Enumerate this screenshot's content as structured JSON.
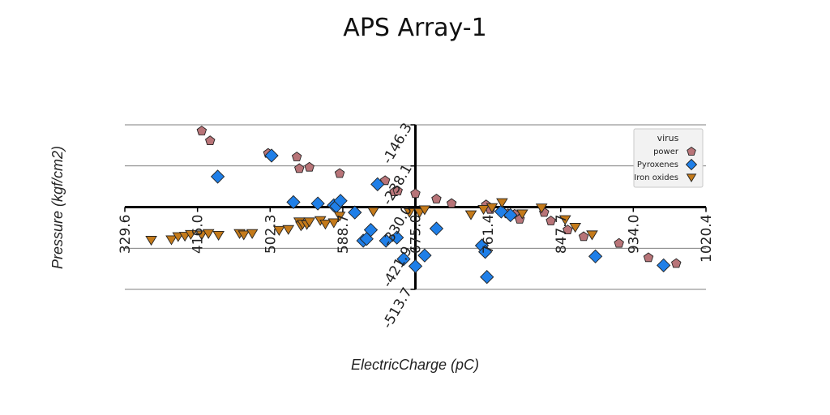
{
  "chart_data": {
    "type": "scatter",
    "title": "APS Array-1",
    "xlabel": "ElectricCharge (pC)",
    "ylabel": "Pressure (kgf/cm2)",
    "xlim": [
      329.6,
      1020.4
    ],
    "ylim": [
      -513.7,
      -146.3
    ],
    "x_ticks": [
      "329.6",
      "416.0",
      "502.3",
      "588.7",
      "675.0",
      "761.4",
      "847.7",
      "934.0",
      "1020.4"
    ],
    "y_ticks": [
      "-146.3",
      "-238.1",
      "-330.0",
      "-421.9",
      "-513.7"
    ],
    "y_tick_values": [
      -146.3,
      -238.1,
      -330.0,
      -421.9,
      -513.7
    ],
    "x_tick_values": [
      329.6,
      416.0,
      502.3,
      588.7,
      675.0,
      761.4,
      847.7,
      934.0,
      1020.4
    ],
    "axes_cross_x": 675.0,
    "axes_cross_y": -330.0,
    "grid": "horizontal",
    "legend": {
      "title": "virus",
      "placement": "right"
    },
    "series": [
      {
        "name": "power",
        "marker": "pentagon",
        "color": "#b87478",
        "points": [
          [
            421,
            -160
          ],
          [
            431,
            -182
          ],
          [
            500,
            -210
          ],
          [
            534,
            -218
          ],
          [
            537,
            -244
          ],
          [
            549,
            -241
          ],
          [
            585,
            -255
          ],
          [
            639,
            -271
          ],
          [
            650,
            -296
          ],
          [
            654,
            -294
          ],
          [
            675,
            -300
          ],
          [
            700,
            -312
          ],
          [
            718,
            -322
          ],
          [
            759,
            -325
          ],
          [
            764,
            -335
          ],
          [
            785,
            -345
          ],
          [
            793,
            -346
          ],
          [
            799,
            -357
          ],
          [
            828,
            -342
          ],
          [
            836,
            -361
          ],
          [
            856,
            -381
          ],
          [
            875,
            -396
          ],
          [
            917,
            -411
          ],
          [
            952,
            -443
          ],
          [
            985,
            -456
          ]
        ]
      },
      {
        "name": "Pyroxenes",
        "marker": "diamond",
        "color": "#1f7fe8",
        "points": [
          [
            440,
            -262
          ],
          [
            504,
            -215
          ],
          [
            530,
            -319
          ],
          [
            559,
            -322
          ],
          [
            578,
            -326
          ],
          [
            581,
            -328
          ],
          [
            586,
            -316
          ],
          [
            630,
            -279
          ],
          [
            603,
            -342
          ],
          [
            613,
            -405
          ],
          [
            617,
            -401
          ],
          [
            622,
            -381
          ],
          [
            640,
            -405
          ],
          [
            653,
            -398
          ],
          [
            661,
            -446
          ],
          [
            675,
            -462
          ],
          [
            686,
            -438
          ],
          [
            700,
            -378
          ],
          [
            754,
            -416
          ],
          [
            758,
            -430
          ],
          [
            760,
            -486
          ],
          [
            777,
            -340
          ],
          [
            788,
            -348
          ],
          [
            889,
            -440
          ],
          [
            970,
            -460
          ]
        ]
      },
      {
        "name": "Iron oxides",
        "marker": "triangle-down",
        "color": "#c47a1a",
        "points": [
          [
            361,
            -404
          ],
          [
            385,
            -403
          ],
          [
            393,
            -396
          ],
          [
            401,
            -395
          ],
          [
            408,
            -391
          ],
          [
            421,
            -392
          ],
          [
            429,
            -389
          ],
          [
            441,
            -393
          ],
          [
            466,
            -389
          ],
          [
            471,
            -392
          ],
          [
            481,
            -389
          ],
          [
            513,
            -382
          ],
          [
            524,
            -380
          ],
          [
            537,
            -363
          ],
          [
            539,
            -372
          ],
          [
            541,
            -368
          ],
          [
            546,
            -369
          ],
          [
            549,
            -363
          ],
          [
            562,
            -360
          ],
          [
            568,
            -368
          ],
          [
            578,
            -365
          ],
          [
            585,
            -350
          ],
          [
            625,
            -340
          ],
          [
            668,
            -342
          ],
          [
            680,
            -342
          ],
          [
            686,
            -336
          ],
          [
            741,
            -347
          ],
          [
            756,
            -335
          ],
          [
            766,
            -331
          ],
          [
            778,
            -320
          ],
          [
            802,
            -345
          ],
          [
            825,
            -332
          ],
          [
            853,
            -358
          ],
          [
            865,
            -375
          ],
          [
            885,
            -392
          ]
        ]
      }
    ]
  }
}
